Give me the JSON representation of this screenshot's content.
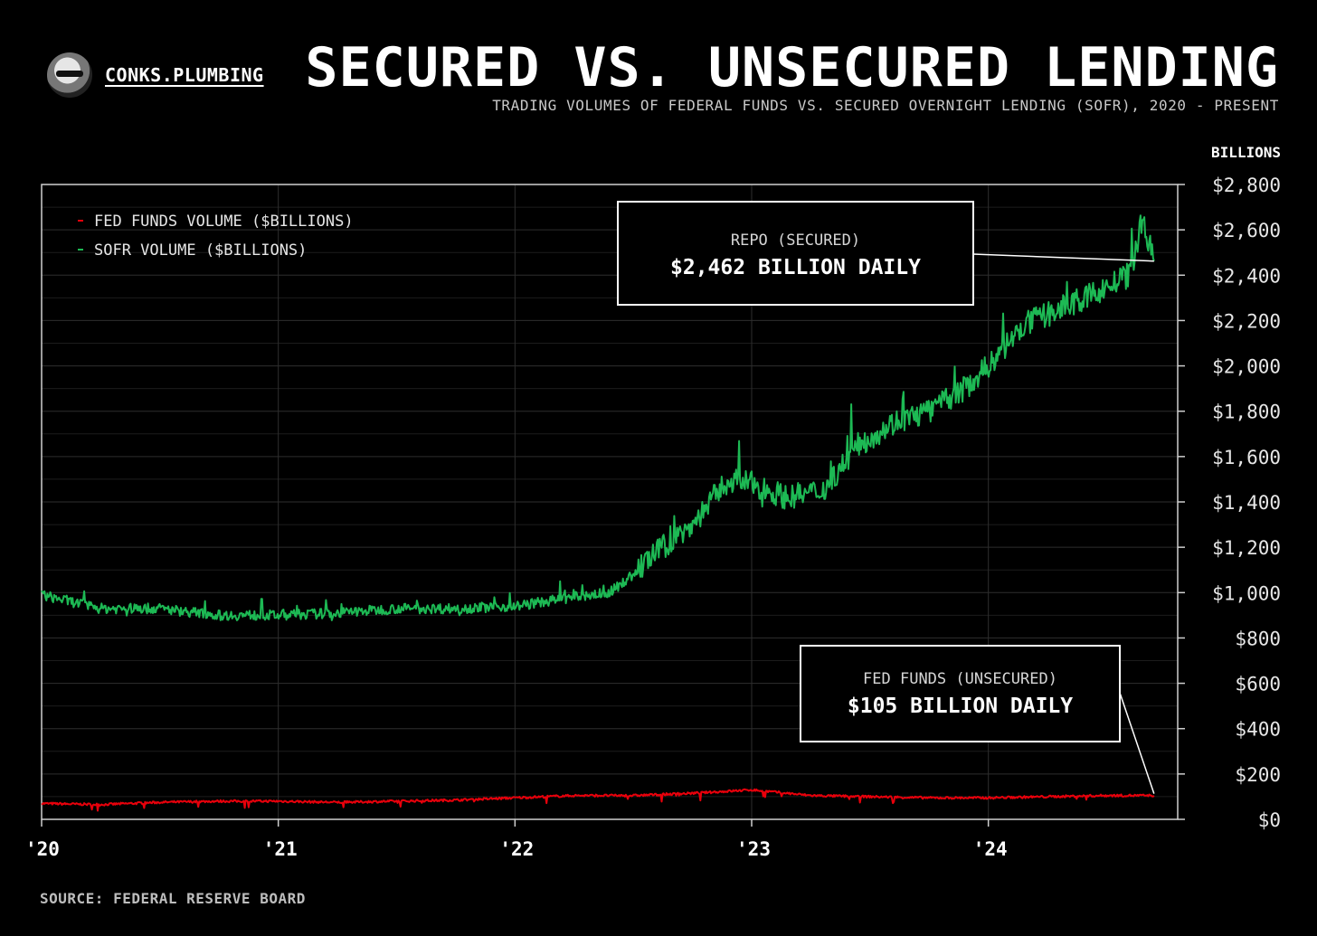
{
  "brand": {
    "name": "CONKS.PLUMBING"
  },
  "header": {
    "title": "SECURED VS. UNSECURED LENDING",
    "subtitle": "TRADING VOLUMES OF FEDERAL FUNDS VS. SECURED OVERNIGHT LENDING (SOFR), 2020 - PRESENT"
  },
  "footer": {
    "source": "SOURCE: FEDERAL RESERVE BOARD"
  },
  "colors": {
    "background": "#000000",
    "fed_funds": "#e8000b",
    "sofr": "#1db954",
    "grid": "#2a2a2a"
  },
  "chart_data": {
    "type": "line",
    "y_unit_label": "BILLIONS",
    "ylim": [
      0,
      2800
    ],
    "y_ticks": [
      0,
      200,
      400,
      600,
      800,
      1000,
      1200,
      1400,
      1600,
      1800,
      2000,
      2200,
      2400,
      2600,
      2800
    ],
    "y_tick_labels": [
      "$0",
      "$200",
      "$400",
      "$600",
      "$800",
      "$1,000",
      "$1,200",
      "$1,400",
      "$1,600",
      "$1,800",
      "$2,000",
      "$2,200",
      "$2,400",
      "$2,600",
      "$2,800"
    ],
    "xlim": [
      2020.0,
      2024.8
    ],
    "x_ticks": [
      2020,
      2021,
      2022,
      2023,
      2024
    ],
    "x_tick_labels": [
      "'20",
      "'21",
      "'22",
      "'23",
      "'24"
    ],
    "legend_position": "top-left",
    "series": [
      {
        "name": "FED FUNDS VOLUME ($BILLIONS)",
        "color": "#e8000b",
        "x": [
          2020.0,
          2020.25,
          2020.5,
          2020.75,
          2021.0,
          2021.25,
          2021.5,
          2021.75,
          2022.0,
          2022.25,
          2022.5,
          2022.75,
          2023.0,
          2023.25,
          2023.5,
          2023.75,
          2024.0,
          2024.25,
          2024.5,
          2024.7
        ],
        "values": [
          70,
          65,
          75,
          80,
          80,
          75,
          80,
          85,
          95,
          105,
          105,
          115,
          130,
          105,
          100,
          95,
          95,
          100,
          105,
          105
        ]
      },
      {
        "name": "SOFR VOLUME ($BILLIONS)",
        "color": "#1db954",
        "x": [
          2020.0,
          2020.25,
          2020.5,
          2020.75,
          2021.0,
          2021.25,
          2021.5,
          2021.75,
          2022.0,
          2022.25,
          2022.4,
          2022.5,
          2022.6,
          2022.75,
          2022.9,
          2023.0,
          2023.15,
          2023.3,
          2023.45,
          2023.6,
          2023.75,
          2023.9,
          2024.0,
          2024.15,
          2024.3,
          2024.45,
          2024.6,
          2024.65,
          2024.7
        ],
        "values": [
          990,
          930,
          930,
          900,
          900,
          910,
          930,
          930,
          940,
          980,
          1000,
          1080,
          1180,
          1300,
          1500,
          1480,
          1420,
          1450,
          1650,
          1750,
          1800,
          1900,
          2000,
          2180,
          2250,
          2320,
          2400,
          2650,
          2462
        ]
      }
    ],
    "annotations": [
      {
        "title": "REPO (SECURED)",
        "value": "$2,462 BILLION DAILY",
        "points_to_series": "SOFR VOLUME ($BILLIONS)",
        "x": 2024.7,
        "y": 2462
      },
      {
        "title": "FED FUNDS (UNSECURED)",
        "value": "$105 BILLION DAILY",
        "points_to_series": "FED FUNDS VOLUME ($BILLIONS)",
        "x": 2024.7,
        "y": 105
      }
    ]
  }
}
